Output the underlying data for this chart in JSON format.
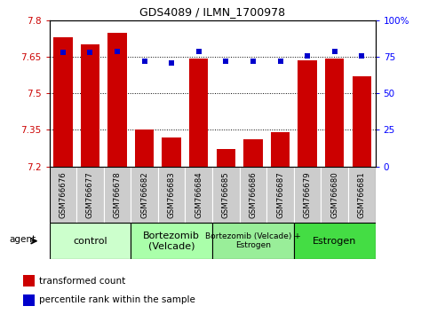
{
  "title": "GDS4089 / ILMN_1700978",
  "samples": [
    "GSM766676",
    "GSM766677",
    "GSM766678",
    "GSM766682",
    "GSM766683",
    "GSM766684",
    "GSM766685",
    "GSM766686",
    "GSM766687",
    "GSM766679",
    "GSM766680",
    "GSM766681"
  ],
  "bar_values": [
    7.73,
    7.7,
    7.75,
    7.35,
    7.32,
    7.645,
    7.27,
    7.31,
    7.34,
    7.635,
    7.645,
    7.57
  ],
  "percentile_values": [
    78,
    78,
    79,
    72,
    71,
    79,
    72,
    72,
    72,
    76,
    79,
    76
  ],
  "bar_color": "#cc0000",
  "point_color": "#0000cc",
  "ylim_left": [
    7.2,
    7.8
  ],
  "ylim_right": [
    0,
    100
  ],
  "yticks_left": [
    7.2,
    7.35,
    7.5,
    7.65,
    7.8
  ],
  "ytick_labels_left": [
    "7.2",
    "7.35",
    "7.5",
    "7.65",
    "7.8"
  ],
  "yticks_right": [
    0,
    25,
    50,
    75,
    100
  ],
  "ytick_labels_right": [
    "0",
    "25",
    "50",
    "75",
    "100%"
  ],
  "hlines": [
    7.35,
    7.5,
    7.65
  ],
  "groups": [
    {
      "label": "control",
      "start": 0,
      "end": 3,
      "color": "#ccffcc",
      "fontsize": 8
    },
    {
      "label": "Bortezomib\n(Velcade)",
      "start": 3,
      "end": 6,
      "color": "#aaffaa",
      "fontsize": 8
    },
    {
      "label": "Bortezomib (Velcade) +\nEstrogen",
      "start": 6,
      "end": 9,
      "color": "#99ee99",
      "fontsize": 6.5
    },
    {
      "label": "Estrogen",
      "start": 9,
      "end": 12,
      "color": "#44dd44",
      "fontsize": 8
    }
  ],
  "legend_bar_label": "transformed count",
  "legend_point_label": "percentile rank within the sample",
  "agent_label": "agent",
  "background_color": "#ffffff",
  "tick_bg": "#cccccc",
  "plot_bg": "#ffffff"
}
